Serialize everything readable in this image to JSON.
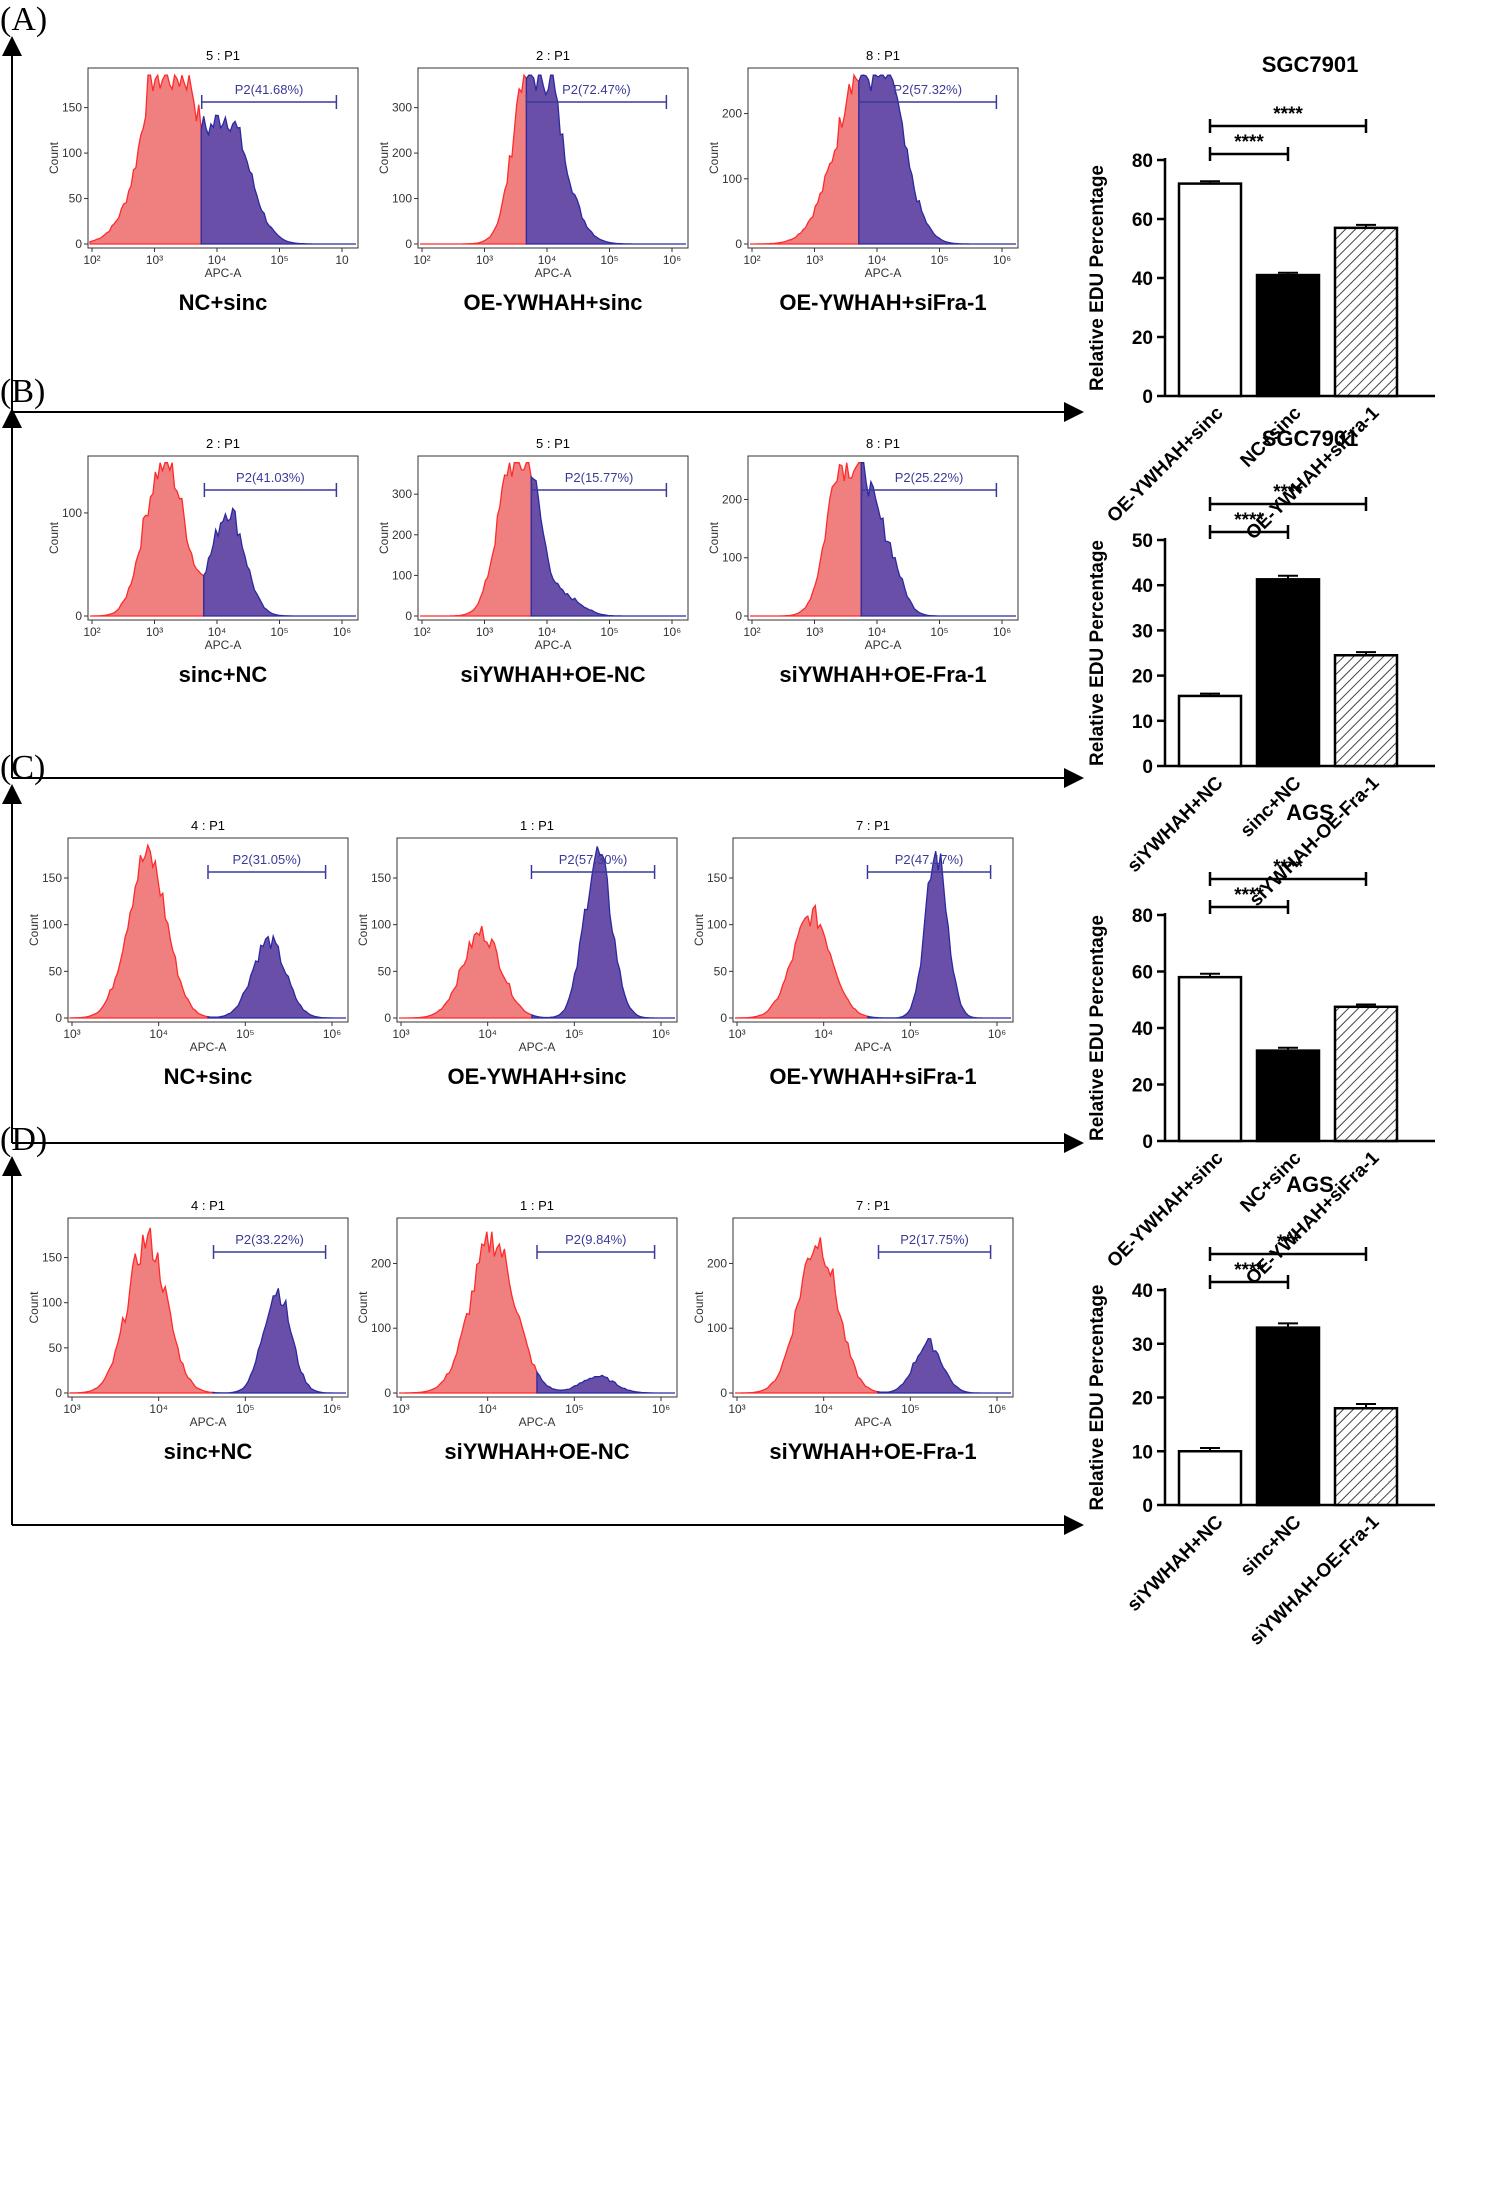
{
  "colors": {
    "red": "#ff2a2a",
    "redFill": "#f08080",
    "blue": "#2a2aa0",
    "blueFill": "#6a4fa8",
    "gate": "#3a3a9a"
  },
  "chart_data": [
    {
      "panel": "(A)",
      "type": "bar",
      "title": "SGC7901",
      "ylabel": "Relative EDU Percentage",
      "ylim": [
        0,
        80
      ],
      "yticks": [
        "0",
        "20",
        "40",
        "60",
        "80"
      ],
      "categories": [
        "OE-YWHAH+sinc",
        "NC+sinc",
        "OE-YWHAH+siFra-1"
      ],
      "values": [
        72,
        41,
        57
      ],
      "errors": [
        0.8,
        0.8,
        1.0
      ],
      "styles": [
        "white",
        "black",
        "hatch"
      ],
      "sig": [
        {
          "a": 0,
          "b": 1,
          "label": "****"
        },
        {
          "a": 0,
          "b": 2,
          "label": "****"
        }
      ],
      "flow": [
        {
          "id": "5 : P1",
          "gate": "P2(41.68%)",
          "cond": "NC+sinc",
          "yticks": [
            "0",
            "50",
            "100",
            "150"
          ],
          "xticks": [
            "10²",
            "10³",
            "10⁴",
            "10⁵",
            "10"
          ],
          "xlabel": "APC-A",
          "ylabel": "Count"
        },
        {
          "id": "2 : P1",
          "gate": "P2(72.47%)",
          "cond": "OE-YWHAH+sinc",
          "yticks": [
            "0",
            "100",
            "200",
            "300"
          ],
          "xticks": [
            "10²",
            "10³",
            "10⁴",
            "10⁵",
            "10⁶"
          ],
          "xlabel": "APC-A",
          "ylabel": "Count"
        },
        {
          "id": "8 : P1",
          "gate": "P2(57.32%)",
          "cond": "OE-YWHAH+siFra-1",
          "yticks": [
            "0",
            "100",
            "200"
          ],
          "xticks": [
            "10²",
            "10³",
            "10⁴",
            "10⁵",
            "10⁶"
          ],
          "xlabel": "APC-A",
          "ylabel": "Count"
        }
      ]
    },
    {
      "panel": "(B)",
      "type": "bar",
      "title": "SGC7901",
      "ylabel": "Relative EDU Percentage",
      "ylim": [
        0,
        50
      ],
      "yticks": [
        "0",
        "10",
        "20",
        "30",
        "40",
        "50"
      ],
      "categories": [
        "siYWHAH+NC",
        "sinc+NC",
        "siYWHAH-OE-Fra-1"
      ],
      "values": [
        15.5,
        41.3,
        24.5
      ],
      "errors": [
        0.5,
        0.8,
        0.7
      ],
      "styles": [
        "white",
        "black",
        "hatch"
      ],
      "sig": [
        {
          "a": 0,
          "b": 1,
          "label": "****"
        },
        {
          "a": 0,
          "b": 2,
          "label": "****"
        }
      ],
      "flow": [
        {
          "id": "2 : P1",
          "gate": "P2(41.03%)",
          "cond": "sinc+NC",
          "yticks": [
            "0",
            "100"
          ],
          "xticks": [
            "10²",
            "10³",
            "10⁴",
            "10⁵",
            "10⁶"
          ],
          "xlabel": "APC-A",
          "ylabel": "Count"
        },
        {
          "id": "5 : P1",
          "gate": "P2(15.77%)",
          "cond": "siYWHAH+OE-NC",
          "yticks": [
            "0",
            "100",
            "200",
            "300"
          ],
          "xticks": [
            "10²",
            "10³",
            "10⁴",
            "10⁵",
            "10⁶"
          ],
          "xlabel": "APC-A",
          "ylabel": "Count"
        },
        {
          "id": "8 : P1",
          "gate": "P2(25.22%)",
          "cond": "siYWHAH+OE-Fra-1",
          "yticks": [
            "0",
            "100",
            "200"
          ],
          "xticks": [
            "10²",
            "10³",
            "10⁴",
            "10⁵",
            "10⁶"
          ],
          "xlabel": "APC-A",
          "ylabel": "Count"
        }
      ]
    },
    {
      "panel": "(C)",
      "type": "bar",
      "title": "AGS",
      "ylabel": "Relative EDU Percentage",
      "ylim": [
        0,
        80
      ],
      "yticks": [
        "0",
        "20",
        "40",
        "60",
        "80"
      ],
      "categories": [
        "OE-YWHAH+sinc",
        "NC+sinc",
        "OE-YWHAH+siFra-1"
      ],
      "values": [
        58,
        32,
        47.5
      ],
      "errors": [
        1.2,
        1.0,
        0.8
      ],
      "styles": [
        "white",
        "black",
        "hatch"
      ],
      "sig": [
        {
          "a": 0,
          "b": 1,
          "label": "****"
        },
        {
          "a": 0,
          "b": 2,
          "label": "****"
        }
      ],
      "flow": [
        {
          "id": "4 : P1",
          "gate": "P2(31.05%)",
          "cond": "NC+sinc",
          "yticks": [
            "0",
            "50",
            "100",
            "150"
          ],
          "xticks": [
            "10³",
            "10⁴",
            "10⁵",
            "10⁶"
          ],
          "xlabel": "APC-A",
          "ylabel": "Count"
        },
        {
          "id": "1 : P1",
          "gate": "P2(57.30%)",
          "cond": "OE-YWHAH+sinc",
          "yticks": [
            "0",
            "50",
            "100",
            "150"
          ],
          "xticks": [
            "10³",
            "10⁴",
            "10⁵",
            "10⁶"
          ],
          "xlabel": "APC-A",
          "ylabel": "Count"
        },
        {
          "id": "7 : P1",
          "gate": "P2(47.17%)",
          "cond": "OE-YWHAH+siFra-1",
          "yticks": [
            "0",
            "50",
            "100",
            "150"
          ],
          "xticks": [
            "10³",
            "10⁴",
            "10⁵",
            "10⁶"
          ],
          "xlabel": "APC-A",
          "ylabel": "Count"
        }
      ]
    },
    {
      "panel": "(D)",
      "type": "bar",
      "title": "AGS",
      "ylabel": "Relative EDU Percentage",
      "ylim": [
        0,
        40
      ],
      "yticks": [
        "0",
        "10",
        "20",
        "30",
        "40"
      ],
      "categories": [
        "siYWHAH+NC",
        "sinc+NC",
        "siYWHAH-OE-Fra-1"
      ],
      "values": [
        10,
        33,
        18
      ],
      "errors": [
        0.6,
        0.8,
        0.8
      ],
      "styles": [
        "white",
        "black",
        "hatch"
      ],
      "sig": [
        {
          "a": 0,
          "b": 1,
          "label": "****"
        },
        {
          "a": 0,
          "b": 2,
          "label": "***"
        }
      ],
      "flow": [
        {
          "id": "4 : P1",
          "gate": "P2(33.22%)",
          "cond": "sinc+NC",
          "yticks": [
            "0",
            "50",
            "100",
            "150"
          ],
          "xticks": [
            "10³",
            "10⁴",
            "10⁵",
            "10⁶"
          ],
          "xlabel": "APC-A",
          "ylabel": "Count"
        },
        {
          "id": "1 : P1",
          "gate": "P2(9.84%)",
          "cond": "siYWHAH+OE-NC",
          "yticks": [
            "0",
            "100",
            "200"
          ],
          "xticks": [
            "10³",
            "10⁴",
            "10⁵",
            "10⁶"
          ],
          "xlabel": "APC-A",
          "ylabel": "Count"
        },
        {
          "id": "7 : P1",
          "gate": "P2(17.75%)",
          "cond": "siYWHAH+OE-Fra-1",
          "yticks": [
            "0",
            "100",
            "200"
          ],
          "xticks": [
            "10³",
            "10⁴",
            "10⁵",
            "10⁶"
          ],
          "xlabel": "APC-A",
          "ylabel": "Count"
        }
      ]
    }
  ]
}
